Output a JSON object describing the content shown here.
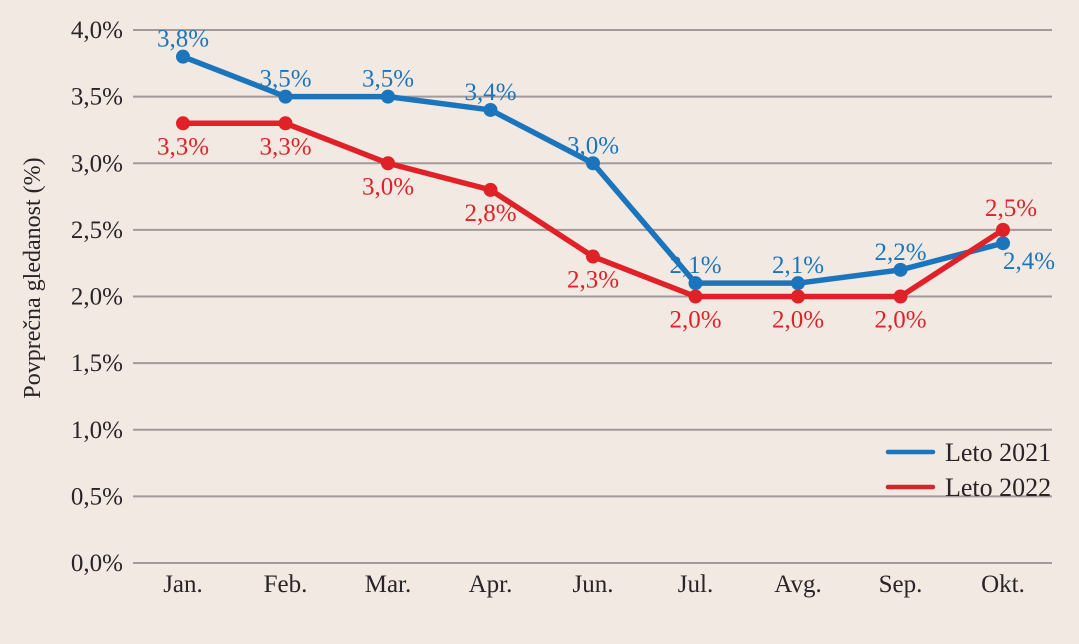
{
  "page": {
    "background_color": "#f2e9e3"
  },
  "chart_data": {
    "type": "line",
    "categories": [
      "Jan.",
      "Feb.",
      "Mar.",
      "Apr.",
      "Jun.",
      "Jul.",
      "Avg.",
      "Sep.",
      "Okt."
    ],
    "series": [
      {
        "name": "Leto 2021",
        "color": "#1b75bc",
        "values": [
          3.8,
          3.5,
          3.5,
          3.4,
          3.0,
          2.1,
          2.1,
          2.2,
          2.4
        ],
        "labels": [
          "3,8%",
          "3,5%",
          "3,5%",
          "3,4%",
          "3,0%",
          "2,1%",
          "2,1%",
          "2,2%",
          "2,4%"
        ],
        "label_side": [
          "above",
          "above",
          "above",
          "above",
          "above",
          "above",
          "above",
          "above",
          "below"
        ],
        "label_offsets": {
          "8": [
            26,
            26
          ]
        }
      },
      {
        "name": "Leto 2022",
        "color": "#e02128",
        "values": [
          3.3,
          3.3,
          3.0,
          2.8,
          2.3,
          2.0,
          2.0,
          2.0,
          2.5
        ],
        "labels": [
          "3,3%",
          "3,3%",
          "3,0%",
          "2,8%",
          "2,3%",
          "2,0%",
          "2,0%",
          "2,0%",
          "2,5%"
        ],
        "label_side": [
          "below",
          "below",
          "below",
          "below",
          "below",
          "below",
          "below",
          "below",
          "above"
        ],
        "label_offsets": {
          "8": [
            8,
            -14
          ]
        }
      }
    ],
    "title": "",
    "xlabel": "",
    "ylabel": "Povprečna gledanost (%)",
    "ylim": [
      0,
      4.0
    ],
    "ytick_step": 0.5,
    "ytick_labels": [
      "0,0%",
      "0,5%",
      "1,0%",
      "1,5%",
      "2,0%",
      "2,5%",
      "3,0%",
      "3,5%",
      "4,0%"
    ],
    "grid": "horizontal",
    "legend_position": "right-lower",
    "colors": {
      "grid": "#a09a9a",
      "axis_text": "#2a2428",
      "background": "#f2e9e3"
    }
  }
}
